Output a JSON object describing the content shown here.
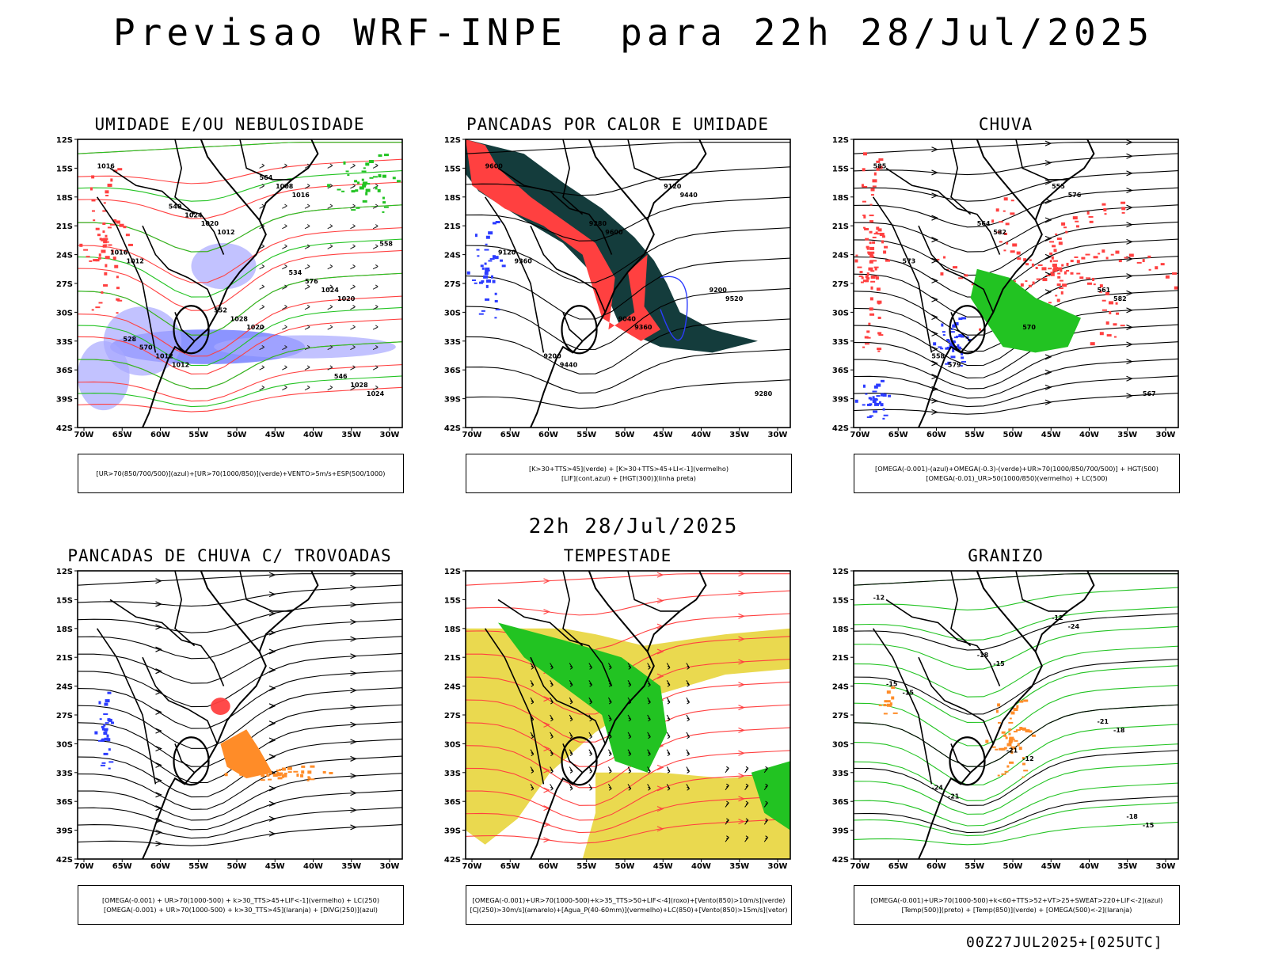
{
  "header": {
    "title": "Previsao WRF-INPE  para 22h 28/Jul/2025",
    "mid_time": "22h 28/Jul/2025",
    "footer": "00Z27JUL2025+[025UTC]"
  },
  "axes": {
    "lat_labels": [
      "12S",
      "15S",
      "18S",
      "21S",
      "24S",
      "27S",
      "30S",
      "33S",
      "36S",
      "39S",
      "42S"
    ],
    "lon_labels": [
      "70W",
      "65W",
      "60W",
      "55W",
      "50W",
      "45W",
      "40W",
      "35W",
      "30W"
    ]
  },
  "colors": {
    "green": "#22c322",
    "red": "#ff4040",
    "blue": "#2c3cff",
    "lavender": "#a8a8ff",
    "dark_teal": "#143c3c",
    "yellow": "#e6d230",
    "orange": "#ff8c28",
    "black": "#000000"
  },
  "panels": [
    {
      "id": "umidade",
      "title": "UMIDADE E/OU NEBULOSIDADE",
      "legend": [
        "[UR>70(850/700/500)](azul)+[UR>70(1000/850)](verde)+VENTO>5m/s+ESP(500/1000)"
      ],
      "contour_labels": [
        "1016",
        "1012",
        "1020",
        "1012",
        "1016",
        "1012",
        "1020",
        "1024",
        "1020",
        "1024",
        "1012",
        "1008",
        "1016",
        "1028",
        "1028",
        "1024",
        "576",
        "570",
        "564",
        "558",
        "552",
        "546",
        "540",
        "534",
        "528"
      ]
    },
    {
      "id": "pancadas-calor",
      "title": "PANCADAS POR CALOR E UMIDADE",
      "legend": [
        "[K>30+TTS>45](verde) + [K>30+TTS>45+LI<-1](vermelho)",
        "[LIF](cont.azul) + [HGT(300)](linha preta)"
      ],
      "contour_labels": [
        "9600",
        "9600",
        "9520",
        "9440",
        "9440",
        "9360",
        "9360",
        "9280",
        "9280",
        "9200",
        "9200",
        "9120",
        "9120",
        "9040"
      ]
    },
    {
      "id": "chuva",
      "title": "CHUVA",
      "legend": [
        "[OMEGA(-0.001)-(azul)+OMEGA(-0.3)-(verde)+UR>70(1000/850/700/500)] + HGT(500)",
        "[OMEGA(-0.01)_UR>50(1000/850)(vermelho) + LC(500)"
      ],
      "contour_labels": [
        "585",
        "582",
        "582",
        "579",
        "576",
        "573",
        "570",
        "567",
        "564",
        "561",
        "558",
        "555"
      ]
    },
    {
      "id": "pancadas-trovoadas",
      "title": "PANCADAS DE CHUVA C/ TROVOADAS",
      "legend": [
        "[OMEGA(-0.001) + UR>70(1000-500) + k>30_TTS>45+LIF<-1](vermelho) + LC(250)",
        "[OMEGA(-0.001) + UR>70(1000-500) + k>30_TTS>45](laranja) + [DIVG(250)](azul)"
      ],
      "contour_labels": []
    },
    {
      "id": "tempestade",
      "title": "TEMPESTADE",
      "legend": [
        "[OMEGA(-0.001)+UR>70(1000-500)+k>35_TTS>50+LIF<-4](roxo)+[Vento(850)>10m/s](verde)",
        "[CJ(250)>30m/s](amarelo)+[Agua_P(40-60mm)](vermelho)+LC(850)+[Vento(850)>15m/s](vetor)"
      ],
      "contour_labels": []
    },
    {
      "id": "granizo",
      "title": "GRANIZO",
      "legend": [
        "[OMEGA(-0.001)+UR>70(1000-500)+k<60+TTS>52+VT>25+SWEAT>220+LIF<-2](azul)",
        "[Temp(500)](preto) + [Temp(850)](verde) + [OMEGA(500)<-2](laranja)"
      ],
      "contour_labels": [
        "-12",
        "-15",
        "-18",
        "-21",
        "-24",
        "-15",
        "-12",
        "-15",
        "-18",
        "-21",
        "-24",
        "-12",
        "-15",
        "-21",
        "-18"
      ]
    }
  ]
}
